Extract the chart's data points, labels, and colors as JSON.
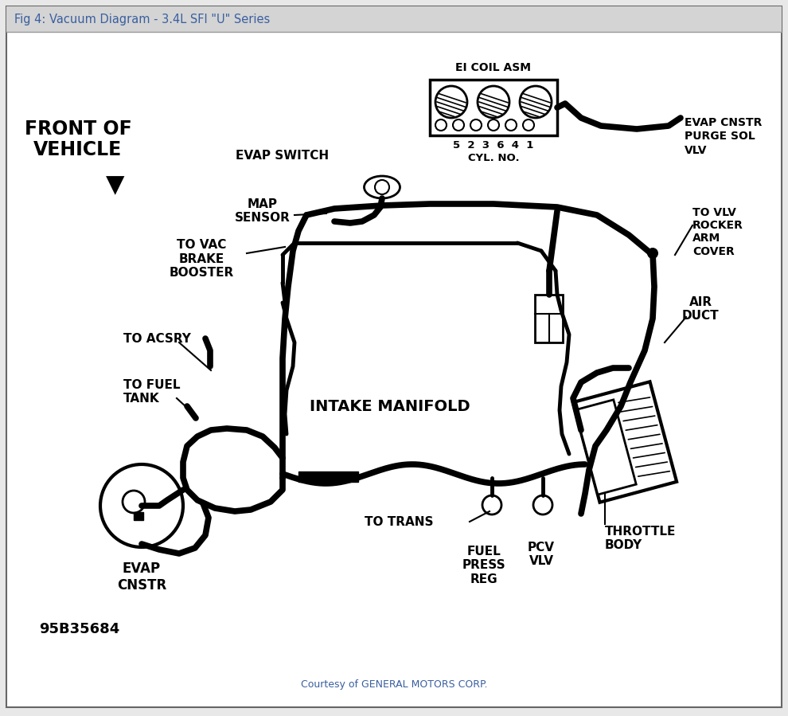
{
  "title": "Fig 4: Vacuum Diagram - 3.4L SFI \"U\" Series",
  "title_color": "#3a5fa0",
  "title_bg": "#d4d4d4",
  "bg_color": "#e8e8e8",
  "diagram_bg": "#ffffff",
  "border_color": "#999999",
  "courtesy": "Courtesy of GENERAL MOTORS CORP.",
  "courtesy_color": "#3a5fa0",
  "part_number": "95B35684",
  "top_bar_color": "#c8c8c8"
}
